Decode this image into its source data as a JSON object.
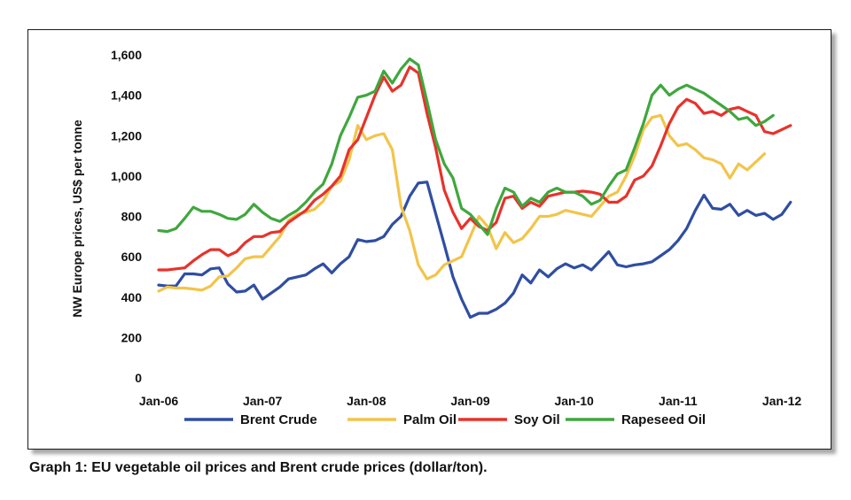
{
  "caption": "Graph 1: EU vegetable oil prices and Brent crude prices (dollar/ton).",
  "chart_data": {
    "type": "line",
    "title": "",
    "xlabel": "",
    "ylabel": "NW Europe prices, US$ per tonne",
    "ylim": [
      0,
      1600
    ],
    "yticks": [
      0,
      200,
      400,
      600,
      800,
      1000,
      1200,
      1400,
      1600
    ],
    "ytick_labels": [
      "0",
      "200",
      "400",
      "600",
      "800",
      "1,000",
      "1,200",
      "1,400",
      "1,600"
    ],
    "xtick_labels": [
      "Jan-06",
      "Jan-07",
      "Jan-08",
      "Jan-09",
      "Jan-10",
      "Jan-11",
      "Jan-12"
    ],
    "x_frequency": "monthly",
    "x_start": "Jan-06",
    "legend_position": "bottom",
    "grid": false,
    "series": [
      {
        "name": "Brent Crude",
        "color": "#2f4ea3",
        "values": [
          460,
          455,
          455,
          515,
          515,
          510,
          540,
          545,
          465,
          425,
          430,
          460,
          390,
          420,
          450,
          490,
          500,
          510,
          540,
          565,
          520,
          565,
          600,
          685,
          675,
          680,
          700,
          760,
          800,
          900,
          965,
          970,
          815,
          660,
          500,
          390,
          300,
          320,
          320,
          340,
          370,
          420,
          510,
          470,
          535,
          500,
          540,
          565,
          545,
          560,
          535,
          580,
          625,
          560,
          550,
          560,
          565,
          575,
          605,
          635,
          680,
          740,
          830,
          905,
          840,
          835,
          860,
          805,
          830,
          805,
          815,
          785,
          810,
          870
        ]
      },
      {
        "name": "Palm Oil",
        "color": "#f2c44a",
        "values": [
          430,
          450,
          445,
          445,
          440,
          435,
          455,
          500,
          505,
          545,
          590,
          600,
          600,
          650,
          700,
          780,
          810,
          820,
          835,
          875,
          950,
          975,
          1080,
          1250,
          1180,
          1200,
          1210,
          1130,
          850,
          730,
          560,
          490,
          510,
          560,
          580,
          600,
          700,
          800,
          750,
          640,
          720,
          670,
          690,
          740,
          800,
          800,
          810,
          830,
          820,
          810,
          800,
          850,
          900,
          920,
          1000,
          1100,
          1230,
          1290,
          1300,
          1200,
          1150,
          1160,
          1130,
          1090,
          1080,
          1060,
          990,
          1060,
          1030,
          1070,
          1110
        ]
      },
      {
        "name": "Soy Oil",
        "color": "#e8322b",
        "values": [
          535,
          535,
          540,
          545,
          580,
          610,
          635,
          635,
          605,
          625,
          670,
          700,
          700,
          720,
          725,
          770,
          800,
          830,
          880,
          910,
          950,
          1000,
          1130,
          1180,
          1290,
          1400,
          1490,
          1420,
          1450,
          1540,
          1510,
          1310,
          1140,
          930,
          820,
          740,
          790,
          750,
          730,
          770,
          890,
          900,
          840,
          870,
          850,
          900,
          910,
          920,
          920,
          925,
          920,
          910,
          870,
          870,
          900,
          980,
          1000,
          1050,
          1150,
          1260,
          1340,
          1380,
          1360,
          1310,
          1320,
          1300,
          1330,
          1340,
          1320,
          1300,
          1220,
          1210,
          1230,
          1250
        ]
      },
      {
        "name": "Rapeseed Oil",
        "color": "#3fa73d",
        "values": [
          730,
          725,
          740,
          790,
          845,
          825,
          825,
          810,
          790,
          785,
          810,
          860,
          820,
          790,
          775,
          805,
          830,
          870,
          920,
          960,
          1060,
          1200,
          1290,
          1390,
          1400,
          1420,
          1520,
          1460,
          1530,
          1580,
          1550,
          1370,
          1180,
          1060,
          990,
          840,
          810,
          760,
          710,
          840,
          940,
          920,
          850,
          890,
          870,
          920,
          940,
          920,
          920,
          900,
          860,
          880,
          950,
          1010,
          1030,
          1140,
          1260,
          1400,
          1450,
          1400,
          1430,
          1450,
          1430,
          1410,
          1380,
          1350,
          1320,
          1280,
          1290,
          1250,
          1270,
          1300
        ]
      }
    ]
  }
}
